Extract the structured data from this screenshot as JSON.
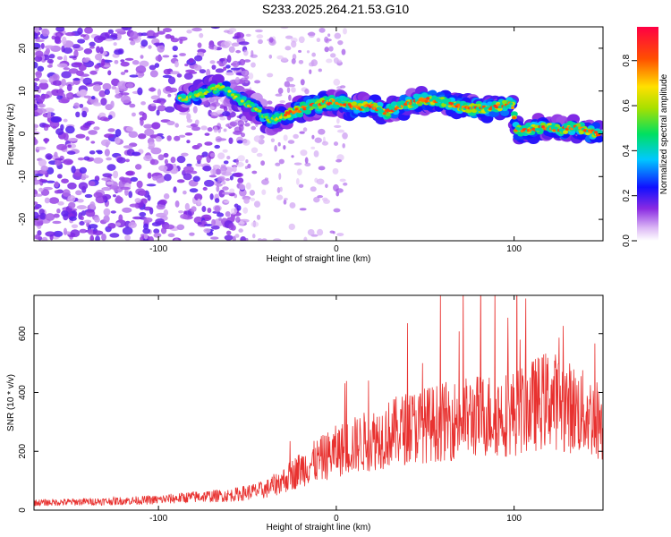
{
  "title": "S233.2025.264.21.53.G10",
  "chart_data": [
    {
      "type": "heatmap",
      "name": "spectrogram",
      "xlabel": "Height of straight line (km)",
      "ylabel": "Frequency (Hz)",
      "xlim": [
        -170,
        150
      ],
      "ylim": [
        -25,
        25
      ],
      "xticks": [
        -100,
        0,
        100
      ],
      "yticks": [
        -20,
        -10,
        0,
        10,
        20
      ],
      "colorbar": {
        "label": "Normalized spectral amplitude",
        "range": [
          0,
          0.95
        ],
        "ticks": [
          0.0,
          0.2,
          0.4,
          0.6,
          0.8
        ]
      },
      "ridge": [
        {
          "x": -86,
          "y": 8
        },
        {
          "x": -80,
          "y": 9
        },
        {
          "x": -72,
          "y": 10
        },
        {
          "x": -65,
          "y": 11
        },
        {
          "x": -55,
          "y": 8
        },
        {
          "x": -45,
          "y": 6
        },
        {
          "x": -38,
          "y": 3
        },
        {
          "x": -32,
          "y": 4
        },
        {
          "x": -25,
          "y": 5
        },
        {
          "x": -18,
          "y": 6
        },
        {
          "x": -10,
          "y": 7
        },
        {
          "x": -2,
          "y": 7.5
        },
        {
          "x": 5,
          "y": 7
        },
        {
          "x": 12,
          "y": 6
        },
        {
          "x": 20,
          "y": 6.5
        },
        {
          "x": 28,
          "y": 5
        },
        {
          "x": 36,
          "y": 6.5
        },
        {
          "x": 44,
          "y": 7.5
        },
        {
          "x": 52,
          "y": 8
        },
        {
          "x": 60,
          "y": 7.5
        },
        {
          "x": 68,
          "y": 6.5
        },
        {
          "x": 76,
          "y": 6
        },
        {
          "x": 84,
          "y": 6
        },
        {
          "x": 92,
          "y": 6.5
        },
        {
          "x": 99,
          "y": 7
        },
        {
          "x": 101,
          "y": 1
        },
        {
          "x": 110,
          "y": 1
        },
        {
          "x": 118,
          "y": 1.5
        },
        {
          "x": 126,
          "y": 1
        },
        {
          "x": 134,
          "y": 1.5
        },
        {
          "x": 142,
          "y": 0.5
        },
        {
          "x": 148,
          "y": 0
        }
      ]
    },
    {
      "type": "line",
      "name": "snr",
      "xlabel": "Height of straight line (km)",
      "ylabel": "SNR (10 * v/v)",
      "xlim": [
        -170,
        150
      ],
      "ylim": [
        0,
        730
      ],
      "xticks": [
        -100,
        0,
        100
      ],
      "yticks": [
        0,
        200,
        400,
        600
      ],
      "series_color": "#e8312f",
      "envelope": [
        {
          "x": -170,
          "y": 25
        },
        {
          "x": -130,
          "y": 30
        },
        {
          "x": -100,
          "y": 35
        },
        {
          "x": -80,
          "y": 45
        },
        {
          "x": -60,
          "y": 50
        },
        {
          "x": -40,
          "y": 70
        },
        {
          "x": -30,
          "y": 100
        },
        {
          "x": -20,
          "y": 140
        },
        {
          "x": -10,
          "y": 170
        },
        {
          "x": 0,
          "y": 200
        },
        {
          "x": 20,
          "y": 240
        },
        {
          "x": 40,
          "y": 280
        },
        {
          "x": 60,
          "y": 300
        },
        {
          "x": 80,
          "y": 320
        },
        {
          "x": 100,
          "y": 330
        },
        {
          "x": 120,
          "y": 380
        },
        {
          "x": 135,
          "y": 340
        },
        {
          "x": 150,
          "y": 300
        }
      ]
    }
  ]
}
